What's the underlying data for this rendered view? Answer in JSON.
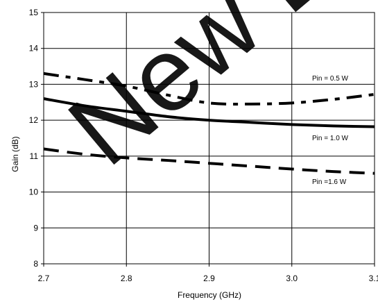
{
  "chart_data": {
    "type": "line",
    "xlabel": "Frequency (GHz)",
    "ylabel": "Gain (dB)",
    "xlim": [
      2.7,
      3.1
    ],
    "ylim": [
      8,
      15
    ],
    "x_ticks": [
      "2.7",
      "2.8",
      "2.9",
      "3.0",
      "3.1"
    ],
    "y_ticks": [
      "8",
      "9",
      "10",
      "11",
      "12",
      "13",
      "14",
      "15"
    ],
    "grid": true,
    "watermark": "New D",
    "series": [
      {
        "name": "Pin = 0.5 W",
        "style": "dash-dot",
        "x": [
          2.7,
          2.75,
          2.8,
          2.85,
          2.9,
          2.95,
          3.0,
          3.05,
          3.1
        ],
        "y": [
          13.3,
          13.13,
          12.95,
          12.7,
          12.48,
          12.45,
          12.48,
          12.58,
          12.72
        ]
      },
      {
        "name": "Pin = 1.0 W",
        "style": "solid",
        "x": [
          2.7,
          2.75,
          2.8,
          2.85,
          2.9,
          2.95,
          3.0,
          3.05,
          3.1
        ],
        "y": [
          12.6,
          12.4,
          12.25,
          12.1,
          12.0,
          11.94,
          11.88,
          11.84,
          11.82
        ]
      },
      {
        "name": "Pin =1.6 W",
        "style": "dash",
        "x": [
          2.7,
          2.75,
          2.8,
          2.85,
          2.9,
          2.95,
          3.0,
          3.05,
          3.1
        ],
        "y": [
          11.2,
          11.05,
          10.95,
          10.88,
          10.8,
          10.72,
          10.64,
          10.57,
          10.52
        ]
      }
    ]
  }
}
